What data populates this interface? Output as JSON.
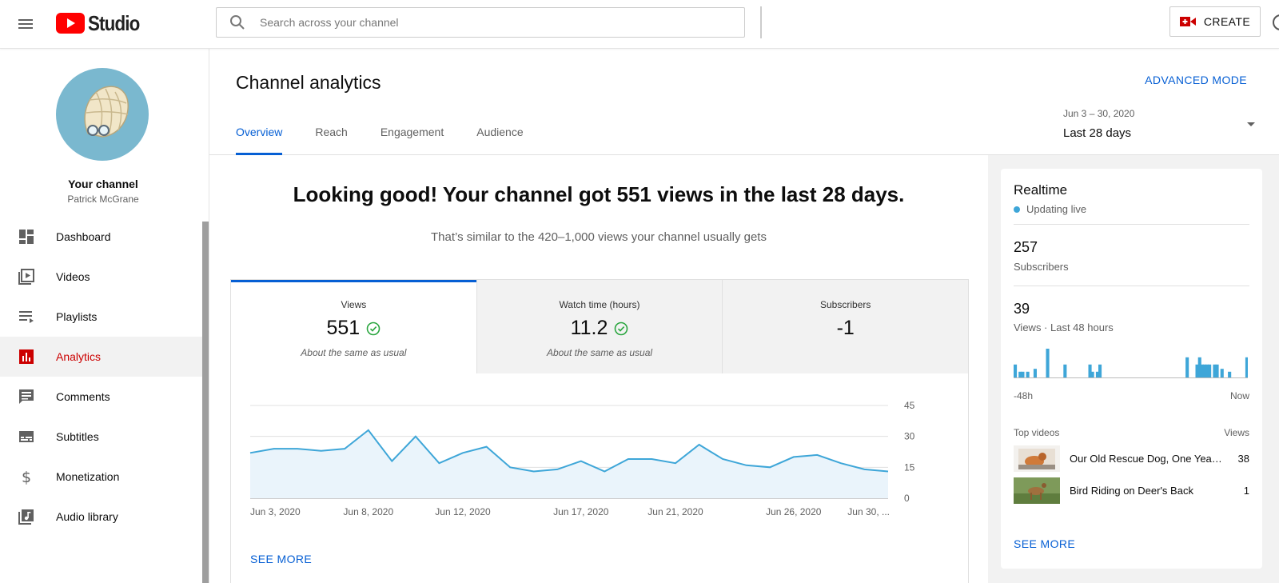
{
  "header": {
    "logo_text": "Studio",
    "search_placeholder": "Search across your channel",
    "create_label": "CREATE"
  },
  "sidebar": {
    "channel_label": "Your channel",
    "channel_owner": "Patrick McGrane",
    "items": [
      {
        "label": "Dashboard",
        "icon": "dashboard-icon"
      },
      {
        "label": "Videos",
        "icon": "videos-icon"
      },
      {
        "label": "Playlists",
        "icon": "playlists-icon"
      },
      {
        "label": "Analytics",
        "icon": "analytics-icon",
        "active": true
      },
      {
        "label": "Comments",
        "icon": "comments-icon"
      },
      {
        "label": "Subtitles",
        "icon": "subtitles-icon"
      },
      {
        "label": "Monetization",
        "icon": "dollar-icon"
      },
      {
        "label": "Audio library",
        "icon": "audio-library-icon"
      }
    ]
  },
  "main": {
    "title": "Channel analytics",
    "advanced_mode": "ADVANCED MODE",
    "tabs": [
      "Overview",
      "Reach",
      "Engagement",
      "Audience"
    ],
    "active_tab": "Overview",
    "date_range_small": "Jun 3 – 30, 2020",
    "date_range_label": "Last 28 days",
    "headline": "Looking good! Your channel got 551 views in the last 28 days.",
    "subline": "That’s similar to the 420–1,000 views your channel usually gets",
    "metrics": [
      {
        "label": "Views",
        "value": "551",
        "note": "About the same as usual",
        "check": true
      },
      {
        "label": "Watch time (hours)",
        "value": "11.2",
        "note": "About the same as usual",
        "check": true
      },
      {
        "label": "Subscribers",
        "value": "-1",
        "note": "",
        "check": false
      }
    ],
    "see_more": "SEE MORE"
  },
  "chart_data": {
    "type": "area",
    "x": [
      "Jun 3",
      "Jun 4",
      "Jun 5",
      "Jun 6",
      "Jun 7",
      "Jun 8",
      "Jun 9",
      "Jun 10",
      "Jun 11",
      "Jun 12",
      "Jun 13",
      "Jun 14",
      "Jun 15",
      "Jun 16",
      "Jun 17",
      "Jun 18",
      "Jun 19",
      "Jun 20",
      "Jun 21",
      "Jun 22",
      "Jun 23",
      "Jun 24",
      "Jun 25",
      "Jun 26",
      "Jun 27",
      "Jun 28",
      "Jun 29",
      "Jun 30"
    ],
    "values": [
      22,
      24,
      24,
      23,
      24,
      33,
      18,
      30,
      17,
      22,
      25,
      15,
      13,
      14,
      18,
      13,
      19,
      19,
      17,
      26,
      19,
      16,
      15,
      20,
      21,
      17,
      14,
      13
    ],
    "x_tick_labels": [
      "Jun 3, 2020",
      "Jun 8, 2020",
      "Jun 12, 2020",
      "Jun 17, 2020",
      "Jun 21, 2020",
      "Jun 26, 2020",
      "Jun 30, ..."
    ],
    "x_tick_index": [
      0,
      5,
      9,
      14,
      18,
      23,
      27
    ],
    "y_ticks": [
      "45",
      "30",
      "15",
      "0"
    ],
    "ylim": [
      0,
      45
    ],
    "grid": true,
    "line_color": "#3ea6d8",
    "fill_color": "#eaf4fb"
  },
  "realtime": {
    "title": "Realtime",
    "live_label": "Updating live",
    "subscribers_value": "257",
    "subscribers_label": "Subscribers",
    "views_value": "39",
    "views_label": "Views · Last 48 hours",
    "axis_left": "-48h",
    "axis_right": "Now",
    "bars": [
      0.45,
      0,
      0.2,
      0.2,
      0,
      0.2,
      0,
      0,
      0.3,
      0,
      0,
      0,
      0,
      1,
      0,
      0,
      0,
      0,
      0,
      0,
      0.45,
      0,
      0,
      0,
      0,
      0,
      0,
      0,
      0,
      0,
      0.45,
      0.2,
      0,
      0.2,
      0.45,
      0,
      0,
      0,
      0,
      0,
      0,
      0,
      0,
      0,
      0,
      0,
      0,
      0,
      0,
      0,
      0,
      0,
      0,
      0,
      0,
      0,
      0,
      0,
      0,
      0,
      0,
      0,
      0,
      0,
      0,
      0,
      0,
      0,
      0,
      0.7,
      0,
      0,
      0,
      0.45,
      0.7,
      0.45,
      0.45,
      0.45,
      0.45,
      0,
      0.45,
      0.45,
      0,
      0.3,
      0,
      0,
      0.2,
      0,
      0,
      0,
      0,
      0,
      0,
      0.7
    ],
    "top_videos_label": "Top videos",
    "views_col_label": "Views",
    "videos": [
      {
        "title": "Our Old Rescue Dog, One Year Later",
        "views": "38"
      },
      {
        "title": "Bird Riding on Deer's Back",
        "views": "1"
      }
    ],
    "see_more": "SEE MORE",
    "bar_color": "#3ea6d8"
  },
  "colors": {
    "accent": "#065fd4",
    "active_nav": "#cc0000",
    "youtube_red": "#ff0000"
  }
}
